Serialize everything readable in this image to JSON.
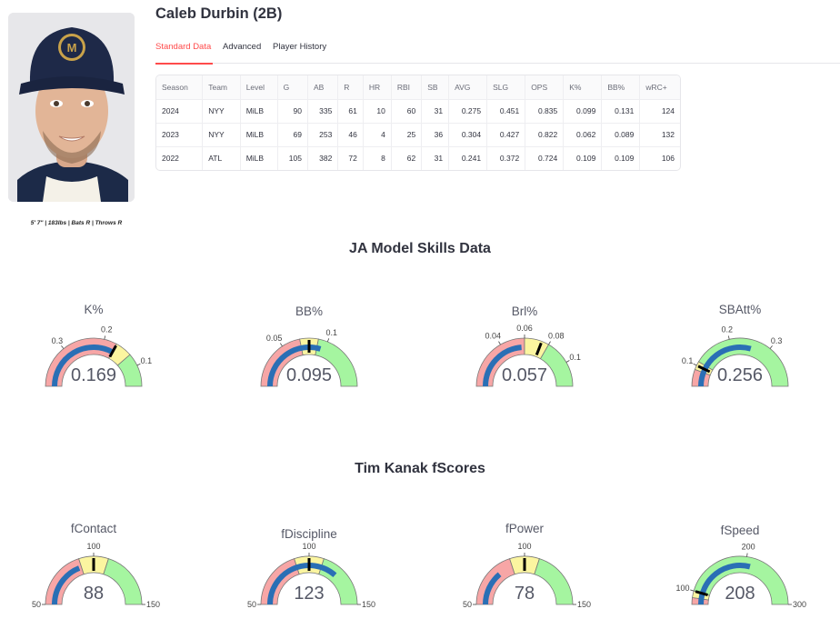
{
  "player": {
    "name": "Caleb Durbin (2B)",
    "bio": "5' 7\" | 183lbs | Bats R | Throws R"
  },
  "tabs": [
    {
      "label": "Standard Data",
      "active": true
    },
    {
      "label": "Advanced",
      "active": false
    },
    {
      "label": "Player History",
      "active": false
    }
  ],
  "stats_table": {
    "columns": [
      "Season",
      "Team",
      "Level",
      "G",
      "AB",
      "R",
      "HR",
      "RBI",
      "SB",
      "AVG",
      "SLG",
      "OPS",
      "K%",
      "BB%",
      "wRC+"
    ],
    "rows": [
      [
        "2024",
        "NYY",
        "MiLB",
        "90",
        "335",
        "61",
        "10",
        "60",
        "31",
        "0.275",
        "0.451",
        "0.835",
        "0.099",
        "0.131",
        "124"
      ],
      [
        "2023",
        "NYY",
        "MiLB",
        "69",
        "253",
        "46",
        "4",
        "25",
        "36",
        "0.304",
        "0.427",
        "0.822",
        "0.062",
        "0.089",
        "132"
      ],
      [
        "2022",
        "ATL",
        "MiLB",
        "105",
        "382",
        "72",
        "8",
        "62",
        "31",
        "0.241",
        "0.372",
        "0.724",
        "0.109",
        "0.109",
        "106"
      ]
    ]
  },
  "sections": {
    "skills_title": "JA Model Skills Data",
    "fscores_title": "Tim Kanak fScores"
  },
  "colors": {
    "red_zone": "#f7a6a6",
    "yellow_zone": "#fbf5a0",
    "green_zone": "#a5f5a0",
    "bar": "#2a6fb5",
    "accent": "#ff4b4b"
  },
  "chart_data": [
    {
      "type": "gauge",
      "title": "K%",
      "value": 0.169,
      "value_label": "0.169",
      "range": [
        0.05,
        0.4
      ],
      "reversed": true,
      "zones": [
        {
          "from": 0.05,
          "to": 0.13,
          "color": "green"
        },
        {
          "from": 0.13,
          "to": 0.17,
          "color": "yellow"
        },
        {
          "from": 0.17,
          "to": 0.4,
          "color": "red"
        }
      ],
      "threshold": 0.169,
      "ticks": [
        {
          "v": 0.1,
          "label": "0.1"
        },
        {
          "v": 0.2,
          "label": "0.2"
        },
        {
          "v": 0.3,
          "label": "0.3"
        }
      ]
    },
    {
      "type": "gauge",
      "title": "BB%",
      "value": 0.095,
      "value_label": "0.095",
      "range": [
        0.0,
        0.16
      ],
      "reversed": false,
      "zones": [
        {
          "from": 0.0,
          "to": 0.07,
          "color": "red"
        },
        {
          "from": 0.07,
          "to": 0.09,
          "color": "yellow"
        },
        {
          "from": 0.09,
          "to": 0.16,
          "color": "green"
        }
      ],
      "threshold": 0.08,
      "ticks": [
        {
          "v": 0.05,
          "label": "0.05"
        },
        {
          "v": 0.1,
          "label": "0.1"
        }
      ]
    },
    {
      "type": "gauge",
      "title": "Brl%",
      "value": 0.057,
      "value_label": "0.057",
      "range": [
        0.0,
        0.12
      ],
      "reversed": false,
      "zones": [
        {
          "from": 0.0,
          "to": 0.06,
          "color": "red"
        },
        {
          "from": 0.06,
          "to": 0.08,
          "color": "yellow"
        },
        {
          "from": 0.08,
          "to": 0.12,
          "color": "green"
        }
      ],
      "threshold": 0.074,
      "ticks": [
        {
          "v": 0.04,
          "label": "0.04"
        },
        {
          "v": 0.06,
          "label": "0.06"
        },
        {
          "v": 0.08,
          "label": "0.08"
        },
        {
          "v": 0.1,
          "label": "0.1"
        }
      ]
    },
    {
      "type": "gauge",
      "title": "SBAtt%",
      "value": 0.256,
      "value_label": "0.256",
      "range": [
        0.05,
        0.4
      ],
      "reversed": false,
      "zones": [
        {
          "from": 0.05,
          "to": 0.09,
          "color": "red"
        },
        {
          "from": 0.09,
          "to": 0.11,
          "color": "yellow"
        },
        {
          "from": 0.11,
          "to": 0.4,
          "color": "green"
        }
      ],
      "threshold": 0.1,
      "ticks": [
        {
          "v": 0.1,
          "label": "0.1"
        },
        {
          "v": 0.2,
          "label": "0.2"
        },
        {
          "v": 0.3,
          "label": "0.3"
        }
      ]
    },
    {
      "type": "gauge",
      "title": "fContact",
      "value": 88,
      "value_label": "88",
      "range": [
        50,
        150
      ],
      "reversed": false,
      "zones": [
        {
          "from": 50,
          "to": 90,
          "color": "red"
        },
        {
          "from": 90,
          "to": 110,
          "color": "yellow"
        },
        {
          "from": 110,
          "to": 150,
          "color": "green"
        }
      ],
      "threshold": 100,
      "ticks": [
        {
          "v": 50,
          "label": "50"
        },
        {
          "v": 100,
          "label": "100"
        },
        {
          "v": 150,
          "label": "150"
        }
      ]
    },
    {
      "type": "gauge",
      "title": "fDiscipline",
      "value": 123,
      "value_label": "123",
      "range": [
        50,
        150
      ],
      "reversed": false,
      "zones": [
        {
          "from": 50,
          "to": 90,
          "color": "red"
        },
        {
          "from": 90,
          "to": 110,
          "color": "yellow"
        },
        {
          "from": 110,
          "to": 150,
          "color": "green"
        }
      ],
      "threshold": 100,
      "ticks": [
        {
          "v": 50,
          "label": "50"
        },
        {
          "v": 100,
          "label": "100"
        },
        {
          "v": 150,
          "label": "150"
        }
      ]
    },
    {
      "type": "gauge",
      "title": "fPower",
      "value": 78,
      "value_label": "78",
      "range": [
        50,
        150
      ],
      "reversed": false,
      "zones": [
        {
          "from": 50,
          "to": 90,
          "color": "red"
        },
        {
          "from": 90,
          "to": 110,
          "color": "yellow"
        },
        {
          "from": 110,
          "to": 150,
          "color": "green"
        }
      ],
      "threshold": 100,
      "ticks": [
        {
          "v": 50,
          "label": "50"
        },
        {
          "v": 100,
          "label": "100"
        },
        {
          "v": 150,
          "label": "150"
        }
      ]
    },
    {
      "type": "gauge",
      "title": "fSpeed",
      "value": 208,
      "value_label": "208",
      "range": [
        80,
        300
      ],
      "reversed": false,
      "zones": [
        {
          "from": 80,
          "to": 90,
          "color": "red"
        },
        {
          "from": 90,
          "to": 100,
          "color": "yellow"
        },
        {
          "from": 100,
          "to": 300,
          "color": "green"
        }
      ],
      "threshold": 100,
      "ticks": [
        {
          "v": 100,
          "label": "100"
        },
        {
          "v": 200,
          "label": "200"
        },
        {
          "v": 300,
          "label": "300"
        }
      ]
    }
  ]
}
